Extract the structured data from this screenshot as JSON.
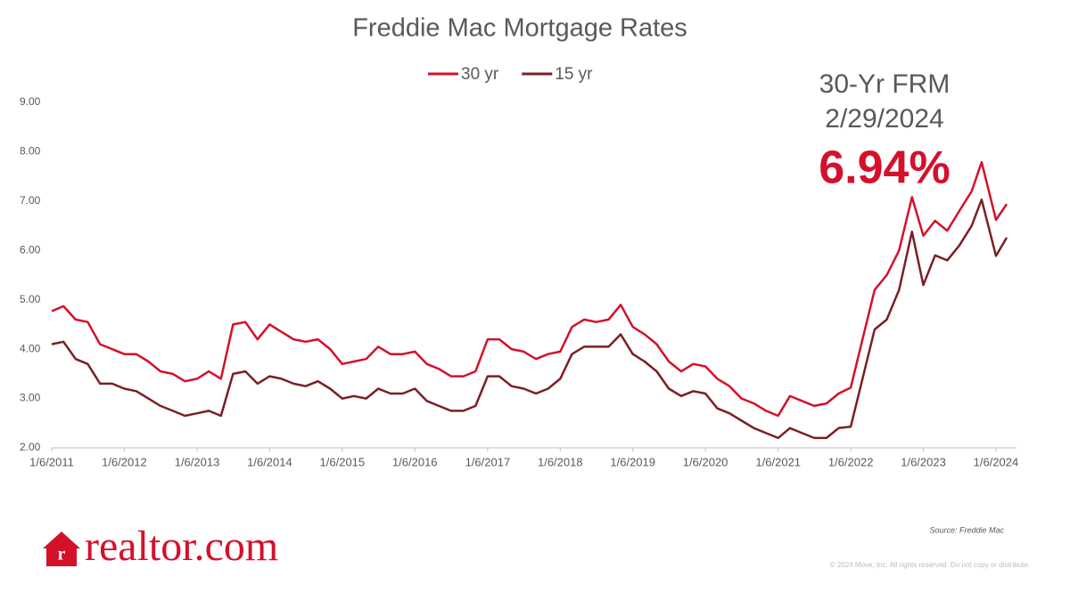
{
  "chart_data": {
    "type": "line",
    "title": "Freddie Mac Mortgage Rates",
    "x": [
      "1/6/2011",
      "3/6/2011",
      "5/6/2011",
      "7/6/2011",
      "9/6/2011",
      "11/6/2011",
      "1/6/2012",
      "3/6/2012",
      "5/6/2012",
      "7/6/2012",
      "9/6/2012",
      "11/6/2012",
      "1/6/2013",
      "3/6/2013",
      "5/6/2013",
      "7/6/2013",
      "9/6/2013",
      "11/6/2013",
      "1/6/2014",
      "3/6/2014",
      "5/6/2014",
      "7/6/2014",
      "9/6/2014",
      "11/6/2014",
      "1/6/2015",
      "3/6/2015",
      "5/6/2015",
      "7/6/2015",
      "9/6/2015",
      "11/6/2015",
      "1/6/2016",
      "3/6/2016",
      "5/6/2016",
      "7/6/2016",
      "9/6/2016",
      "11/6/2016",
      "1/6/2017",
      "3/6/2017",
      "5/6/2017",
      "7/6/2017",
      "9/6/2017",
      "11/6/2017",
      "1/6/2018",
      "3/6/2018",
      "5/6/2018",
      "7/6/2018",
      "9/6/2018",
      "11/6/2018",
      "1/6/2019",
      "3/6/2019",
      "5/6/2019",
      "7/6/2019",
      "9/6/2019",
      "11/6/2019",
      "1/6/2020",
      "3/6/2020",
      "5/6/2020",
      "7/6/2020",
      "9/6/2020",
      "11/6/2020",
      "1/6/2021",
      "3/6/2021",
      "5/6/2021",
      "7/6/2021",
      "9/6/2021",
      "11/6/2021",
      "1/6/2022",
      "3/6/2022",
      "5/6/2022",
      "7/6/2022",
      "9/6/2022",
      "11/10/2022",
      "1/6/2023",
      "3/6/2023",
      "5/6/2023",
      "7/6/2023",
      "9/6/2023",
      "10/26/2023",
      "1/6/2024",
      "2/29/2024"
    ],
    "series": [
      {
        "name": "30 yr",
        "color": "#d5102b",
        "values": [
          4.77,
          4.87,
          4.6,
          4.55,
          4.1,
          4.0,
          3.9,
          3.9,
          3.75,
          3.55,
          3.5,
          3.35,
          3.4,
          3.55,
          3.4,
          4.5,
          4.55,
          4.2,
          4.5,
          4.35,
          4.2,
          4.15,
          4.2,
          4.0,
          3.7,
          3.75,
          3.8,
          4.05,
          3.9,
          3.9,
          3.95,
          3.7,
          3.6,
          3.45,
          3.45,
          3.55,
          4.2,
          4.2,
          4.0,
          3.95,
          3.8,
          3.9,
          3.95,
          4.45,
          4.6,
          4.55,
          4.6,
          4.9,
          4.45,
          4.3,
          4.1,
          3.75,
          3.55,
          3.7,
          3.65,
          3.4,
          3.25,
          3.0,
          2.9,
          2.75,
          2.65,
          3.05,
          2.95,
          2.85,
          2.9,
          3.1,
          3.22,
          4.2,
          5.2,
          5.5,
          6.0,
          7.08,
          6.3,
          6.6,
          6.4,
          6.8,
          7.2,
          7.79,
          6.62,
          6.94
        ]
      },
      {
        "name": "15 yr",
        "color": "#7b1f24",
        "values": [
          4.1,
          4.15,
          3.8,
          3.7,
          3.3,
          3.3,
          3.2,
          3.15,
          3.0,
          2.85,
          2.75,
          2.65,
          2.7,
          2.75,
          2.65,
          3.5,
          3.55,
          3.3,
          3.45,
          3.4,
          3.3,
          3.25,
          3.35,
          3.2,
          3.0,
          3.05,
          3.0,
          3.2,
          3.1,
          3.1,
          3.2,
          2.95,
          2.85,
          2.75,
          2.75,
          2.85,
          3.45,
          3.45,
          3.25,
          3.2,
          3.1,
          3.2,
          3.4,
          3.9,
          4.05,
          4.05,
          4.05,
          4.3,
          3.9,
          3.75,
          3.55,
          3.2,
          3.05,
          3.15,
          3.1,
          2.8,
          2.7,
          2.55,
          2.4,
          2.3,
          2.2,
          2.4,
          2.3,
          2.2,
          2.2,
          2.4,
          2.43,
          3.4,
          4.4,
          4.6,
          5.2,
          6.38,
          5.3,
          5.9,
          5.8,
          6.1,
          6.5,
          7.03,
          5.89,
          6.26
        ]
      }
    ],
    "xlim": [
      "1/6/2011",
      "2/29/2024"
    ],
    "xticks": [
      "1/6/2011",
      "1/6/2012",
      "1/6/2013",
      "1/6/2014",
      "1/6/2015",
      "1/6/2016",
      "1/6/2017",
      "1/6/2018",
      "1/6/2019",
      "1/6/2020",
      "1/6/2021",
      "1/6/2022",
      "1/6/2023",
      "1/6/2024"
    ],
    "ylim": [
      2,
      9
    ],
    "yticks": [
      {
        "value": 2,
        "label": "2.00"
      },
      {
        "value": 3,
        "label": "3.00"
      },
      {
        "value": 4,
        "label": "4.00"
      },
      {
        "value": 5,
        "label": "5.00"
      },
      {
        "value": 6,
        "label": "6.00"
      },
      {
        "value": 7,
        "label": "7.00"
      },
      {
        "value": 8,
        "label": "8.00"
      },
      {
        "value": 9,
        "label": "9.00"
      }
    ],
    "grid": false,
    "legend": "top",
    "annotation": {
      "label": "30-Yr FRM",
      "date": "2/29/2024",
      "value": "6.94%"
    },
    "source": "Source:  Freddie Mac",
    "copyright": "© 2024 Move, Inc. All rights reserved. Do not copy or distribute.",
    "logo": "realtor.com"
  }
}
